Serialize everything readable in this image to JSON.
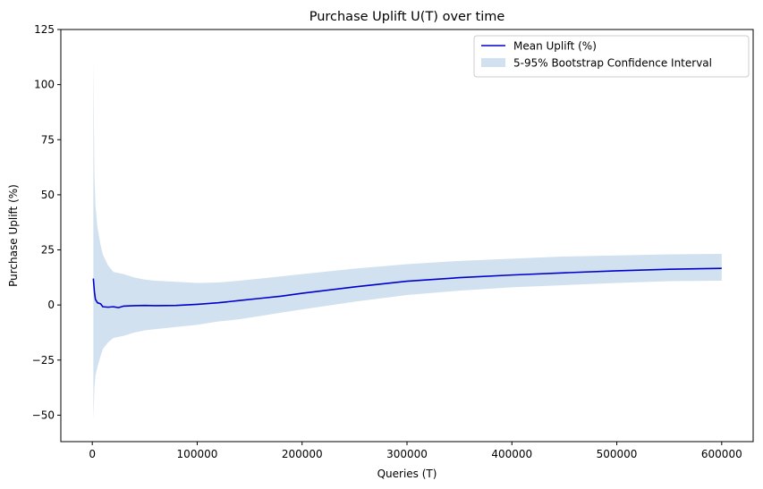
{
  "chart_data": {
    "type": "line",
    "title": "Purchase Uplift U(T) over time",
    "xlabel": "Queries (T)",
    "ylabel": "Purchase Uplift (%)",
    "xlim": [
      -30000,
      630000
    ],
    "ylim": [
      -62,
      125
    ],
    "x_ticks": [
      0,
      100000,
      200000,
      300000,
      400000,
      500000,
      600000
    ],
    "x_tick_labels": [
      "0",
      "100000",
      "200000",
      "300000",
      "400000",
      "500000",
      "600000"
    ],
    "y_ticks": [
      -50,
      -25,
      0,
      25,
      50,
      75,
      100,
      125
    ],
    "y_tick_labels": [
      "−50",
      "−25",
      "0",
      "25",
      "50",
      "75",
      "100",
      "125"
    ],
    "grid": false,
    "legend_position": "top-right",
    "series": [
      {
        "name": "Mean Uplift (%)",
        "kind": "line",
        "color": "#0000cc",
        "x": [
          1000,
          2000,
          3000,
          5000,
          8000,
          10000,
          15000,
          20000,
          25000,
          30000,
          40000,
          50000,
          60000,
          80000,
          100000,
          120000,
          140000,
          160000,
          180000,
          200000,
          250000,
          300000,
          350000,
          400000,
          450000,
          500000,
          550000,
          600000
        ],
        "y": [
          12,
          6,
          2.5,
          1,
          0.5,
          -0.8,
          -1,
          -0.8,
          -1.2,
          -0.5,
          -0.3,
          -0.2,
          -0.3,
          -0.2,
          0.3,
          1,
          2,
          3,
          4,
          5.3,
          8.2,
          10.8,
          12.4,
          13.6,
          14.6,
          15.5,
          16.2,
          16.6
        ]
      },
      {
        "name": "5-95% Bootstrap Confidence Interval",
        "kind": "band",
        "color": "#d2e1ef",
        "x": [
          1000,
          2000,
          3000,
          5000,
          8000,
          10000,
          15000,
          20000,
          30000,
          40000,
          50000,
          60000,
          80000,
          100000,
          120000,
          140000,
          160000,
          180000,
          200000,
          250000,
          300000,
          350000,
          400000,
          450000,
          500000,
          550000,
          600000
        ],
        "lower": [
          -52,
          -38,
          -32,
          -28,
          -23,
          -20,
          -17,
          -15,
          -14,
          -12.5,
          -11.5,
          -11,
          -10,
          -9,
          -7.5,
          -6.5,
          -5,
          -3.5,
          -2,
          1.5,
          4.5,
          6.5,
          8,
          9,
          10,
          10.8,
          11
        ],
        "upper": [
          112,
          60,
          45,
          35,
          27,
          23,
          18,
          15,
          14,
          12.5,
          11.5,
          11,
          10.5,
          10,
          10.2,
          11,
          12,
          13,
          14,
          16.5,
          18.5,
          20,
          21,
          22,
          22.5,
          23,
          23.2
        ]
      }
    ]
  }
}
